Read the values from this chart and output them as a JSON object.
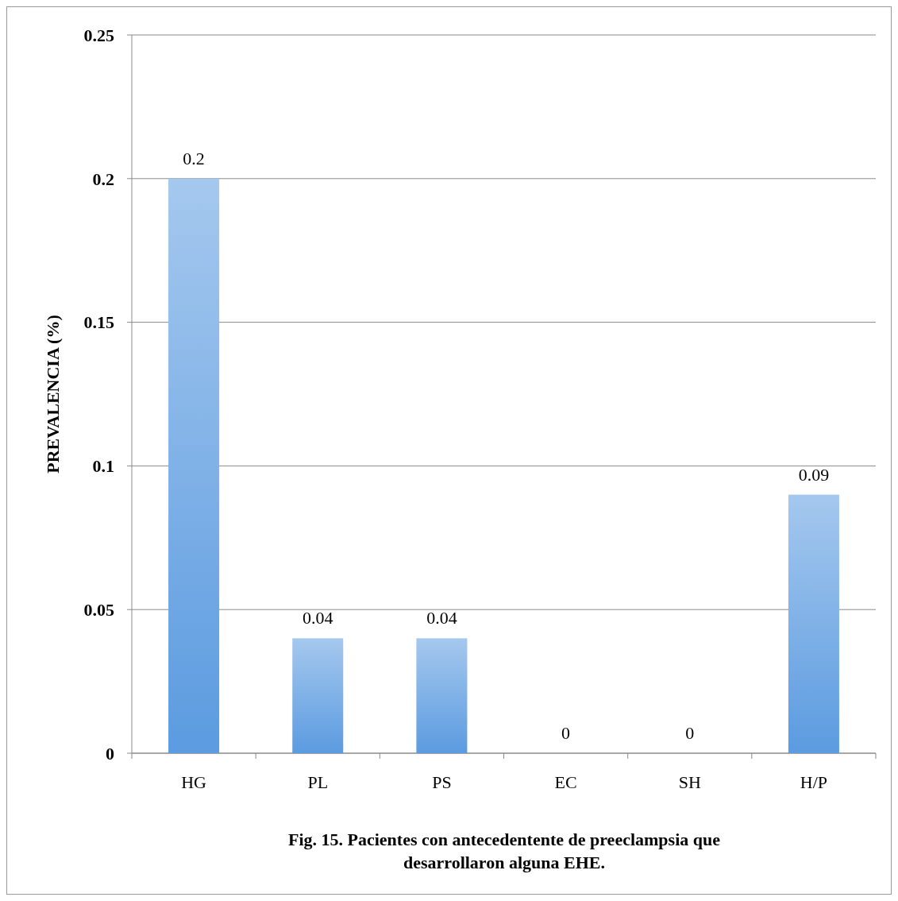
{
  "chart_data": {
    "type": "bar",
    "title": "Fig. 15. Pacientes con antecedentente de preeclampsia que desarrollaron alguna EHE.",
    "ylabel": "PREVALENCIA (%)",
    "categories": [
      "HG",
      "PL",
      "PS",
      "EC",
      "SH",
      "H/P"
    ],
    "values": [
      0.2,
      0.04,
      0.04,
      0,
      0,
      0.09
    ],
    "color": "#5b9be0",
    "ylim": [
      0,
      0.25
    ],
    "yticks": [
      0,
      0.05,
      0.1,
      0.15,
      0.2,
      0.25
    ],
    "grid": "y",
    "data_labels": true
  }
}
